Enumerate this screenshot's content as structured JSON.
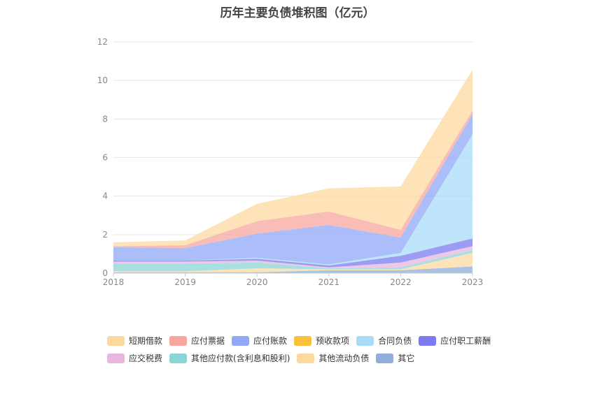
{
  "chart_data": {
    "type": "area",
    "stacked": true,
    "title": "历年主要负债堆积图（亿元）",
    "x": [
      "2018",
      "2019",
      "2020",
      "2021",
      "2022",
      "2023"
    ],
    "ylim": [
      0,
      12
    ],
    "yticks": [
      0,
      2,
      4,
      6,
      8,
      10,
      12
    ],
    "grid": true,
    "legend_position": "bottom",
    "stack_order_bottom_to_top": [
      "其它",
      "其他流动负债",
      "其他应付款(含利息和股利)",
      "应交税费",
      "应付职工薪酬",
      "合同负债",
      "预收款项",
      "应付账款",
      "应付票据",
      "短期借款"
    ],
    "series": [
      {
        "name": "短期借款",
        "color": "#FDD9A0",
        "values": [
          0.2,
          0.25,
          0.9,
          1.2,
          2.25,
          2.1
        ]
      },
      {
        "name": "应付票据",
        "color": "#F7A69E",
        "values": [
          0.05,
          0.15,
          0.65,
          0.7,
          0.4,
          0.2
        ]
      },
      {
        "name": "应付账款",
        "color": "#8FA8F7",
        "values": [
          0.7,
          0.65,
          1.25,
          2.05,
          0.8,
          1.05
        ]
      },
      {
        "name": "预收款项",
        "color": "#F9C23C",
        "values": [
          0.0,
          0.0,
          0.0,
          0.0,
          0.0,
          0.0
        ]
      },
      {
        "name": "合同负债",
        "color": "#A8DCF8",
        "values": [
          0.0,
          0.0,
          0.05,
          0.05,
          0.15,
          5.4
        ]
      },
      {
        "name": "应付职工薪酬",
        "color": "#7B7BEF",
        "values": [
          0.05,
          0.05,
          0.1,
          0.1,
          0.35,
          0.4
        ]
      },
      {
        "name": "应交税费",
        "color": "#E8B6DE",
        "values": [
          0.1,
          0.1,
          0.1,
          0.05,
          0.25,
          0.2
        ]
      },
      {
        "name": "其他应付款(含利息和股利)",
        "color": "#8AD6D6",
        "values": [
          0.4,
          0.4,
          0.3,
          0.05,
          0.1,
          0.15
        ]
      },
      {
        "name": "其他流动负债",
        "color": "#FDD9A0",
        "values": [
          0.05,
          0.05,
          0.2,
          0.05,
          0.05,
          0.7
        ]
      },
      {
        "name": "其它",
        "color": "#8FAEDC",
        "values": [
          0.05,
          0.05,
          0.05,
          0.15,
          0.15,
          0.35
        ]
      }
    ]
  },
  "legend": {
    "row1": [
      "短期借款",
      "应付票据",
      "应付账款",
      "预收款项",
      "合同负债",
      "应付职工薪酬"
    ],
    "row2": [
      "应交税费",
      "其他应付款(含利息和股利)",
      "其他流动负债",
      "其它"
    ]
  }
}
